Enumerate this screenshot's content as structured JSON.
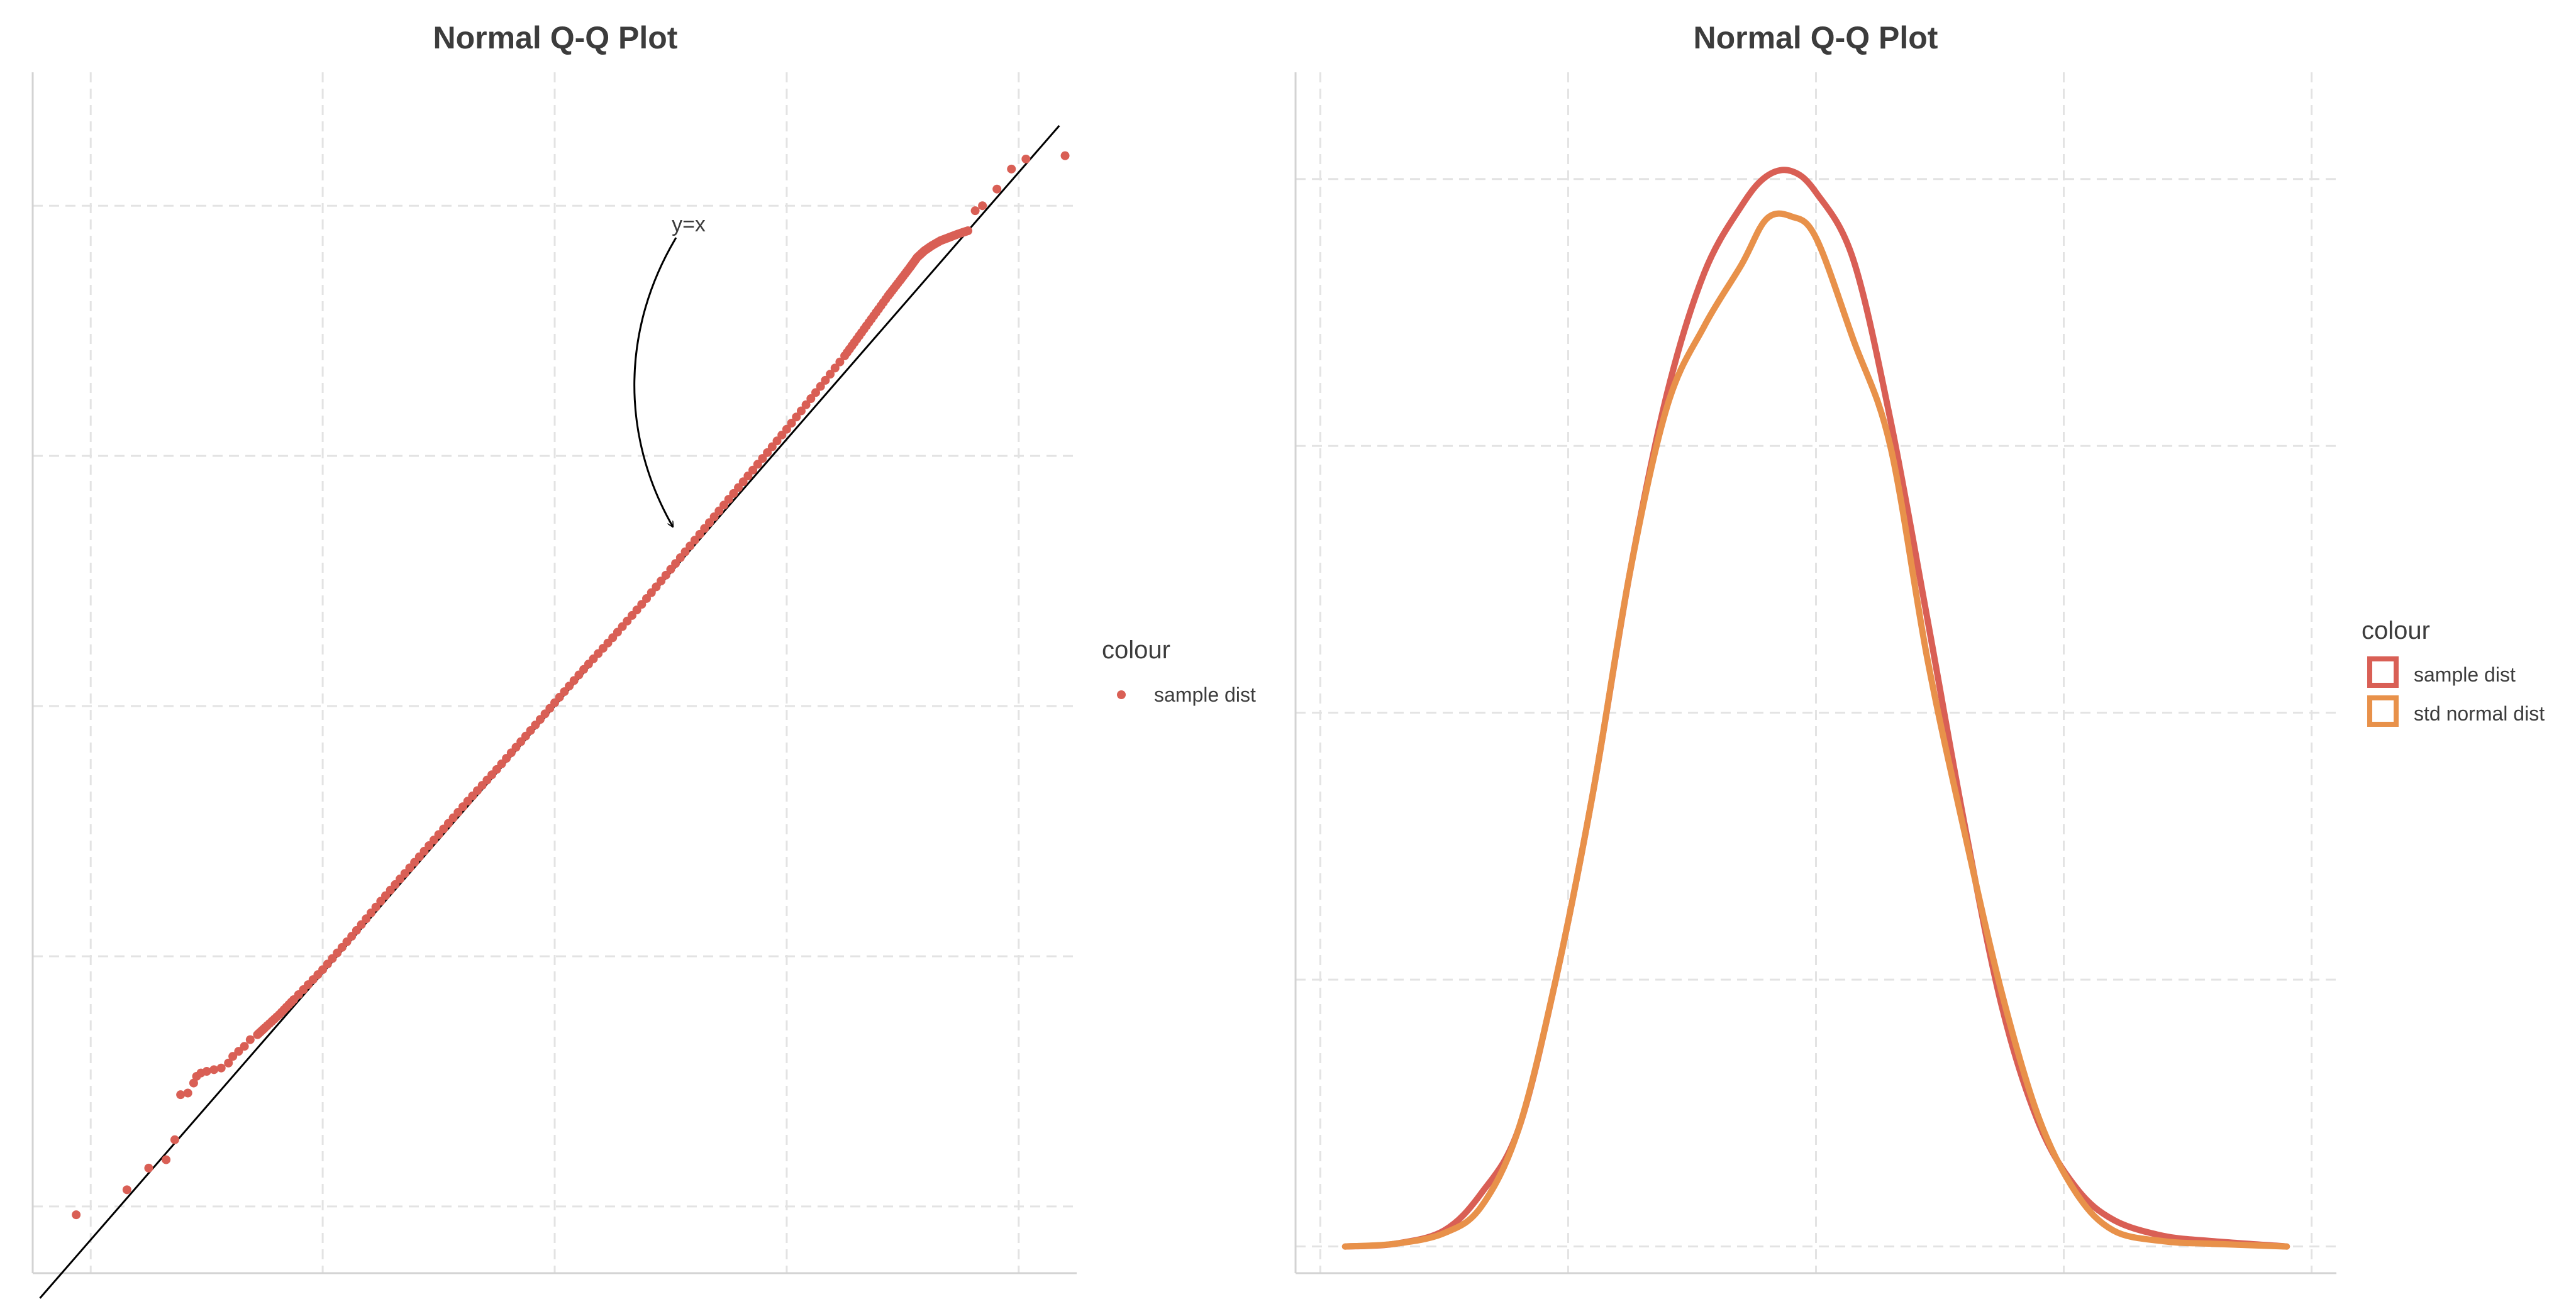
{
  "colors": {
    "sample": "#d95f55",
    "normal": "#e8914a",
    "line": "#000000",
    "text": "#3c3c3c"
  },
  "chart_data": [
    {
      "type": "scatter",
      "title": "Normal Q-Q Plot",
      "xlabel": "",
      "ylabel": "",
      "xlim": [
        -3.6,
        3.6
      ],
      "ylim": [
        -3.4,
        3.8
      ],
      "grid": true,
      "legend": {
        "title": "colour",
        "placement": "right",
        "entries": [
          "sample dist"
        ]
      },
      "reference_line": {
        "label": "y=x",
        "slope": 1,
        "intercept": 0
      },
      "annotation": {
        "text": "y=x",
        "arrow_to": [
          0.62,
          0.64
        ]
      },
      "series": [
        {
          "name": "sample dist",
          "points": [
            [
              -3.3,
              -3.05
            ],
            [
              -2.95,
              -2.9
            ],
            [
              -2.8,
              -2.77
            ],
            [
              -2.68,
              -2.72
            ],
            [
              -2.62,
              -2.6
            ],
            [
              -2.58,
              -2.33
            ],
            [
              -2.53,
              -2.32
            ],
            [
              -2.49,
              -2.26
            ],
            [
              -2.47,
              -2.22
            ],
            [
              -2.44,
              -2.2
            ],
            [
              -2.4,
              -2.19
            ],
            [
              -2.35,
              -2.18
            ],
            [
              -2.3,
              -2.17
            ],
            [
              -2.25,
              -2.14
            ],
            [
              -2.22,
              -2.1
            ],
            [
              -2.18,
              -2.07
            ],
            [
              -2.14,
              -2.04
            ],
            [
              -2.1,
              -2.0
            ],
            [
              -2.05,
              -1.97
            ],
            [
              -2.0,
              -1.93
            ],
            [
              -1.9,
              -1.85
            ],
            [
              -1.8,
              -1.76
            ],
            [
              -1.6,
              -1.58
            ],
            [
              -1.4,
              -1.38
            ],
            [
              -1.2,
              -1.17
            ],
            [
              -1.0,
              -0.97
            ],
            [
              -0.8,
              -0.77
            ],
            [
              -0.6,
              -0.57
            ],
            [
              -0.4,
              -0.38
            ],
            [
              -0.2,
              -0.18
            ],
            [
              0.0,
              0.02
            ],
            [
              0.2,
              0.22
            ],
            [
              0.4,
              0.41
            ],
            [
              0.6,
              0.61
            ],
            [
              0.8,
              0.82
            ],
            [
              1.0,
              1.03
            ],
            [
              1.2,
              1.24
            ],
            [
              1.4,
              1.45
            ],
            [
              1.6,
              1.66
            ],
            [
              1.8,
              1.88
            ],
            [
              2.0,
              2.1
            ],
            [
              2.1,
              2.22
            ],
            [
              2.2,
              2.34
            ],
            [
              2.3,
              2.46
            ],
            [
              2.38,
              2.55
            ],
            [
              2.45,
              2.63
            ],
            [
              2.5,
              2.69
            ],
            [
              2.55,
              2.73
            ],
            [
              2.6,
              2.76
            ],
            [
              2.66,
              2.79
            ],
            [
              2.72,
              2.81
            ],
            [
              2.78,
              2.83
            ],
            [
              2.85,
              2.85
            ],
            [
              2.9,
              2.97
            ],
            [
              2.95,
              3.0
            ],
            [
              3.05,
              3.1
            ],
            [
              3.15,
              3.22
            ],
            [
              3.25,
              3.28
            ],
            [
              3.52,
              3.3
            ]
          ]
        }
      ]
    },
    {
      "type": "line",
      "title": "Normal Q-Q Plot",
      "xlabel": "",
      "ylabel": "",
      "xlim": [
        -4.2,
        4.2
      ],
      "ylim": [
        -0.01,
        0.44
      ],
      "grid": true,
      "legend": {
        "title": "colour",
        "placement": "right",
        "entries": [
          "sample dist",
          "std normal dist"
        ]
      },
      "series": [
        {
          "name": "sample dist",
          "points": [
            [
              -3.8,
              0.0
            ],
            [
              -3.4,
              0.001
            ],
            [
              -3.0,
              0.006
            ],
            [
              -2.7,
              0.02
            ],
            [
              -2.4,
              0.044
            ],
            [
              -2.1,
              0.1
            ],
            [
              -1.8,
              0.17
            ],
            [
              -1.5,
              0.253
            ],
            [
              -1.2,
              0.32
            ],
            [
              -0.9,
              0.365
            ],
            [
              -0.6,
              0.39
            ],
            [
              -0.4,
              0.401
            ],
            [
              -0.2,
              0.403
            ],
            [
              0.0,
              0.395
            ],
            [
              0.3,
              0.37
            ],
            [
              0.6,
              0.31
            ],
            [
              0.9,
              0.235
            ],
            [
              1.2,
              0.158
            ],
            [
              1.5,
              0.09
            ],
            [
              1.8,
              0.046
            ],
            [
              2.1,
              0.022
            ],
            [
              2.4,
              0.01
            ],
            [
              2.8,
              0.004
            ],
            [
              3.2,
              0.002
            ],
            [
              3.8,
              0.0
            ]
          ]
        },
        {
          "name": "std normal dist",
          "points": [
            [
              -3.8,
              0.0
            ],
            [
              -3.4,
              0.001
            ],
            [
              -3.0,
              0.005
            ],
            [
              -2.7,
              0.015
            ],
            [
              -2.4,
              0.044
            ],
            [
              -2.1,
              0.1
            ],
            [
              -1.8,
              0.17
            ],
            [
              -1.5,
              0.253
            ],
            [
              -1.2,
              0.315
            ],
            [
              -0.9,
              0.345
            ],
            [
              -0.6,
              0.368
            ],
            [
              -0.4,
              0.385
            ],
            [
              -0.2,
              0.386
            ],
            [
              0.0,
              0.378
            ],
            [
              0.3,
              0.34
            ],
            [
              0.6,
              0.3
            ],
            [
              0.9,
              0.22
            ],
            [
              1.2,
              0.155
            ],
            [
              1.5,
              0.095
            ],
            [
              1.8,
              0.048
            ],
            [
              2.1,
              0.02
            ],
            [
              2.4,
              0.006
            ],
            [
              2.8,
              0.002
            ],
            [
              3.2,
              0.001
            ],
            [
              3.8,
              0.0
            ]
          ]
        }
      ]
    }
  ]
}
